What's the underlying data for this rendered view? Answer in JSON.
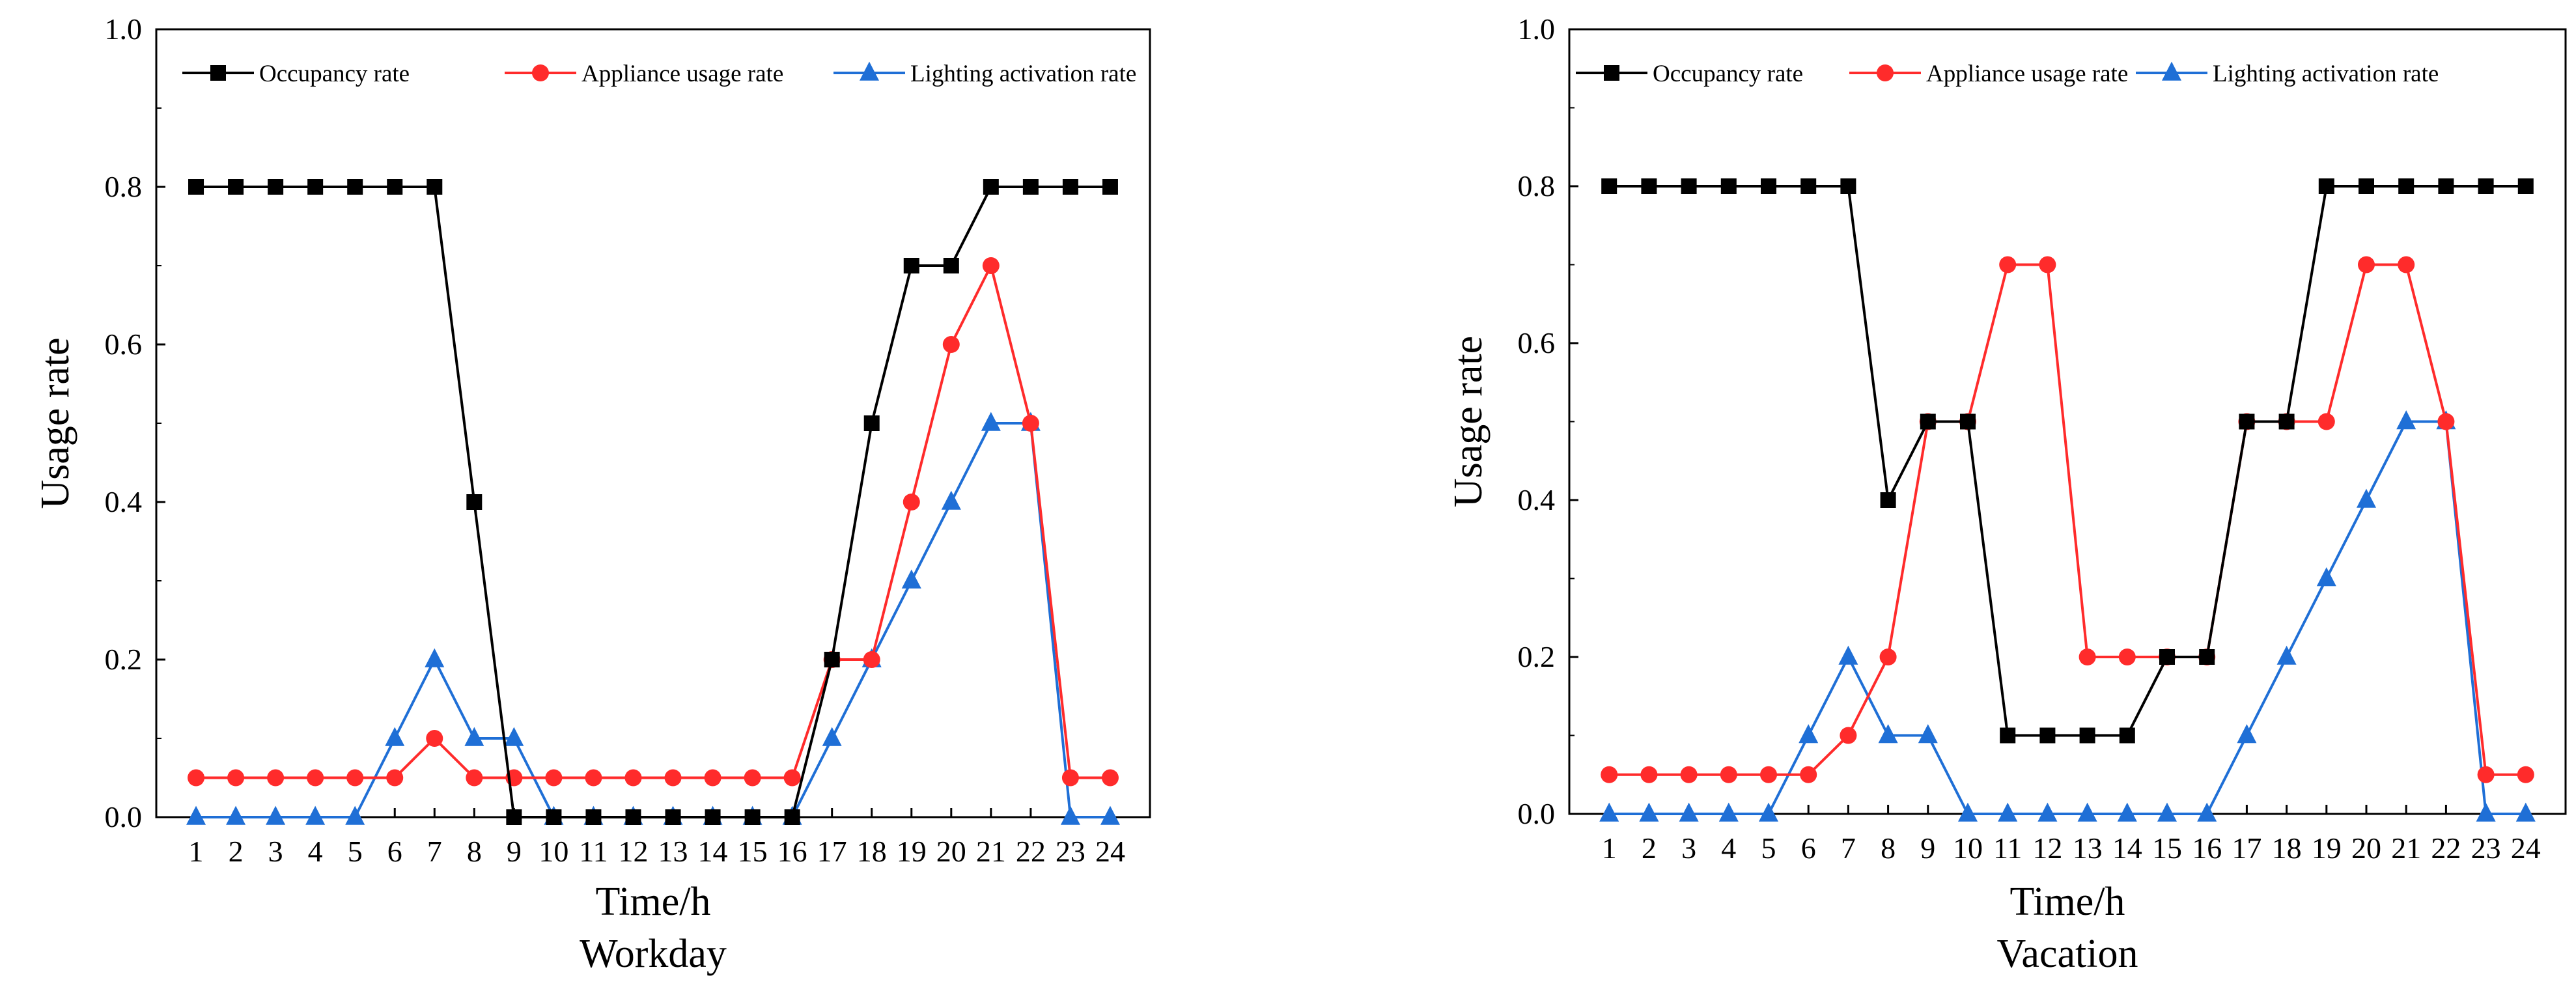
{
  "figure": {
    "colors": {
      "occupancy": "#000000",
      "appliance": "#ff2b2b",
      "lighting": "#1f6fd6"
    }
  },
  "chart_data": [
    {
      "type": "line",
      "caption": "Workday",
      "xlabel": "Time/h",
      "ylabel": "Usage rate",
      "x": [
        1,
        2,
        3,
        4,
        5,
        6,
        7,
        8,
        9,
        10,
        11,
        12,
        13,
        14,
        15,
        16,
        17,
        18,
        19,
        20,
        21,
        22,
        23,
        24
      ],
      "xticks": [
        "1",
        "2",
        "3",
        "4",
        "5",
        "6",
        "7",
        "8",
        "9",
        "10",
        "11",
        "12",
        "13",
        "14",
        "15",
        "16",
        "17",
        "18",
        "19",
        "20",
        "21",
        "22",
        "23",
        "24"
      ],
      "ylim": [
        0,
        1.0
      ],
      "yticks": [
        "0.0",
        "0.2",
        "0.4",
        "0.6",
        "0.8",
        "1.0"
      ],
      "legend_position": "top",
      "series": [
        {
          "name": "Occupancy rate",
          "marker": "square",
          "values": [
            0.8,
            0.8,
            0.8,
            0.8,
            0.8,
            0.8,
            0.8,
            0.4,
            0,
            0,
            0,
            0,
            0,
            0,
            0,
            0,
            0.2,
            0.5,
            0.7,
            0.7,
            0.8,
            0.8,
            0.8,
            0.8
          ]
        },
        {
          "name": "Appliance usage rate",
          "marker": "circle",
          "values": [
            0.05,
            0.05,
            0.05,
            0.05,
            0.05,
            0.05,
            0.1,
            0.05,
            0.05,
            0.05,
            0.05,
            0.05,
            0.05,
            0.05,
            0.05,
            0.05,
            0.2,
            0.2,
            0.4,
            0.6,
            0.7,
            0.5,
            0.05,
            0.05
          ]
        },
        {
          "name": "Lighting activation rate",
          "marker": "triangle",
          "values": [
            0,
            0,
            0,
            0,
            0,
            0.1,
            0.2,
            0.1,
            0.1,
            0,
            0,
            0,
            0,
            0,
            0,
            0,
            0.1,
            0.2,
            0.3,
            0.4,
            0.5,
            0.5,
            0,
            0
          ]
        }
      ]
    },
    {
      "type": "line",
      "caption": "Vacation",
      "xlabel": "Time/h",
      "ylabel": "Usage rate",
      "x": [
        1,
        2,
        3,
        4,
        5,
        6,
        7,
        8,
        9,
        10,
        11,
        12,
        13,
        14,
        15,
        16,
        17,
        18,
        19,
        20,
        21,
        22,
        23,
        24
      ],
      "xticks": [
        "1",
        "2",
        "3",
        "4",
        "5",
        "6",
        "7",
        "8",
        "9",
        "10",
        "11",
        "12",
        "13",
        "14",
        "15",
        "16",
        "17",
        "18",
        "19",
        "20",
        "21",
        "22",
        "23",
        "24"
      ],
      "ylim": [
        0,
        1.0
      ],
      "yticks": [
        "0.0",
        "0.2",
        "0.4",
        "0.6",
        "0.8",
        "1.0"
      ],
      "legend_position": "top",
      "series": [
        {
          "name": "Occupancy rate",
          "marker": "square",
          "values": [
            0.8,
            0.8,
            0.8,
            0.8,
            0.8,
            0.8,
            0.8,
            0.4,
            0.5,
            0.5,
            0.1,
            0.1,
            0.1,
            0.1,
            0.2,
            0.2,
            0.5,
            0.5,
            0.8,
            0.8,
            0.8,
            0.8,
            0.8,
            0.8
          ]
        },
        {
          "name": "Appliance usage rate",
          "marker": "circle",
          "values": [
            0.05,
            0.05,
            0.05,
            0.05,
            0.05,
            0.05,
            0.1,
            0.2,
            0.5,
            0.5,
            0.7,
            0.7,
            0.2,
            0.2,
            0.2,
            0.2,
            0.5,
            0.5,
            0.5,
            0.7,
            0.7,
            0.5,
            0.05,
            0.05
          ]
        },
        {
          "name": "Lighting activation rate",
          "marker": "triangle",
          "values": [
            0,
            0,
            0,
            0,
            0,
            0.1,
            0.2,
            0.1,
            0.1,
            0,
            0,
            0,
            0,
            0,
            0,
            0,
            0.1,
            0.2,
            0.3,
            0.4,
            0.5,
            0.5,
            0,
            0
          ]
        }
      ]
    }
  ]
}
